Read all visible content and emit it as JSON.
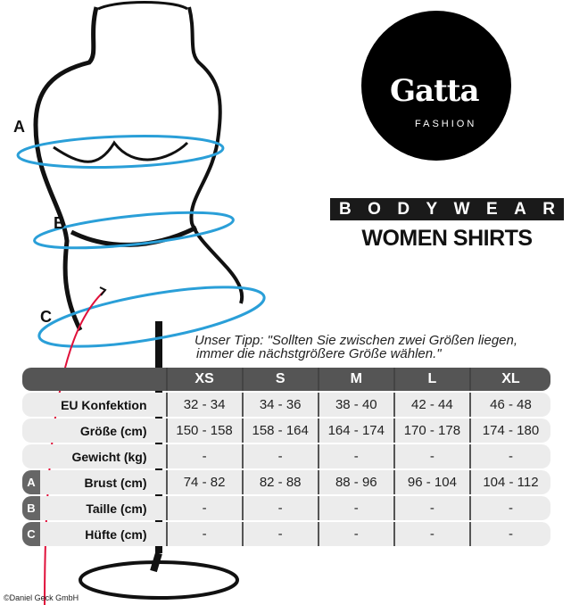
{
  "brand": {
    "logo_text": "Gatta",
    "sub": "FASHION",
    "category": "BODYWEAR",
    "product": "WOMEN SHIRTS"
  },
  "tip": {
    "line1": "Unser Tipp: \"Sollten Sie zwischen zwei Größen liegen,",
    "line2": "immer die nächstgrößere Größe wählen.\""
  },
  "markers": [
    "A",
    "B",
    "C"
  ],
  "table": {
    "sizes": [
      "XS",
      "S",
      "M",
      "L",
      "XL"
    ],
    "rows": [
      {
        "badge": "",
        "label": "EU Konfektion",
        "values": [
          "32 - 34",
          "34 - 36",
          "38 - 40",
          "42 - 44",
          "46 - 48"
        ]
      },
      {
        "badge": "",
        "label": "Größe (cm)",
        "values": [
          "150 - 158",
          "158 - 164",
          "164 - 174",
          "170 - 178",
          "174 - 180"
        ]
      },
      {
        "badge": "",
        "label": "Gewicht (kg)",
        "values": [
          "-",
          "-",
          "-",
          "-",
          "-"
        ]
      },
      {
        "badge": "A",
        "label": "Brust (cm)",
        "values": [
          "74 - 82",
          "82 - 88",
          "88 - 96",
          "96 - 104",
          "104 - 112"
        ]
      },
      {
        "badge": "B",
        "label": "Taille (cm)",
        "values": [
          "-",
          "-",
          "-",
          "-",
          "-"
        ]
      },
      {
        "badge": "C",
        "label": "Hüfte (cm)",
        "values": [
          "-",
          "-",
          "-",
          "-",
          "-"
        ]
      }
    ]
  },
  "colors": {
    "measure_blue": "#2a9fd8",
    "accent_red": "#e0103a",
    "header_gray": "#555555",
    "row_gray": "#ececec"
  },
  "copyright": "©Daniel Geck GmbH"
}
